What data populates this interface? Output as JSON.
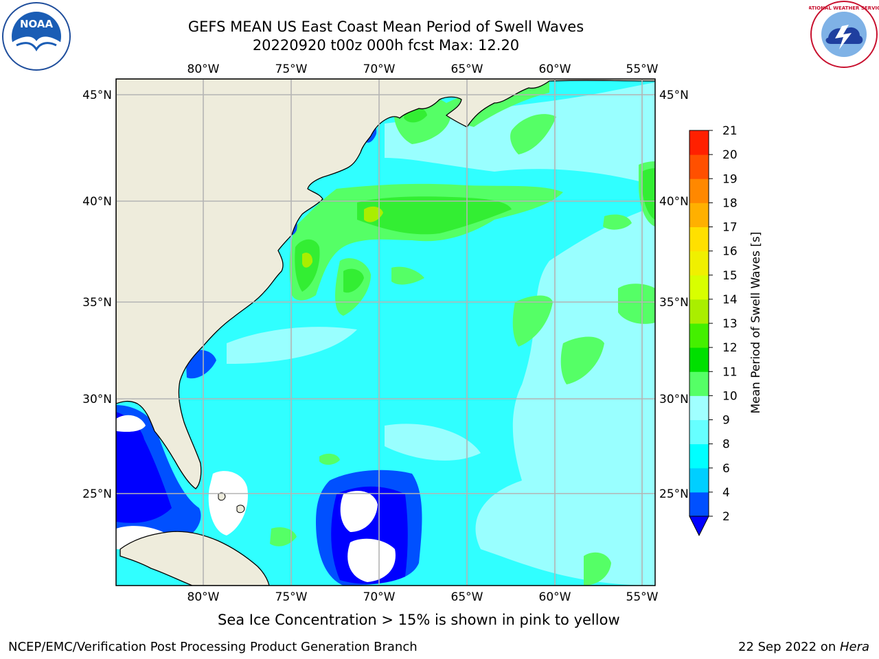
{
  "title": {
    "line1": "GEFS MEAN US East Coast Mean Period of Swell Waves",
    "line2": "20220920 t00z 000h fcst   Max: 12.20"
  },
  "map": {
    "lon_labels": [
      "80°W",
      "75°W",
      "70°W",
      "65°W",
      "60°W",
      "55°W"
    ],
    "lat_labels": [
      "45°N",
      "40°N",
      "35°N",
      "30°N",
      "25°N"
    ],
    "land_color": "#eeecdc",
    "grid_color": "#b4b4b4"
  },
  "colorbar": {
    "label": "Mean Period of Swell Waves [s]",
    "ticks": [
      "2",
      "4",
      "6",
      "8",
      "9",
      "10",
      "11",
      "12",
      "13",
      "14",
      "15",
      "16",
      "17",
      "18",
      "19",
      "20",
      "21"
    ],
    "colors": [
      "#0050ff",
      "#00cfff",
      "#00ffff",
      "#66ffff",
      "#a0ffff",
      "#55ff66",
      "#00e000",
      "#44f000",
      "#aaee00",
      "#d8ff00",
      "#f0f000",
      "#ffe000",
      "#ffb000",
      "#ff8800",
      "#ff5000",
      "#ff2000"
    ],
    "under_color": "#0000ff"
  },
  "footer": {
    "ice_note": "Sea Ice Concentration > 15% is shown in pink to yellow",
    "credit": "NCEP/EMC/Verification Post Processing Product Generation Branch",
    "date": "22 Sep 2022 on ",
    "host": "Hera"
  },
  "logos": {
    "noaa_text": "NOAA",
    "noaa_ring": "NATIONAL OCEANIC AND ATMOSPHERIC ADMINISTRATION · U.S. DEPARTMENT OF COMMERCE",
    "nws_ring": "NATIONAL WEATHER SERVICE"
  }
}
